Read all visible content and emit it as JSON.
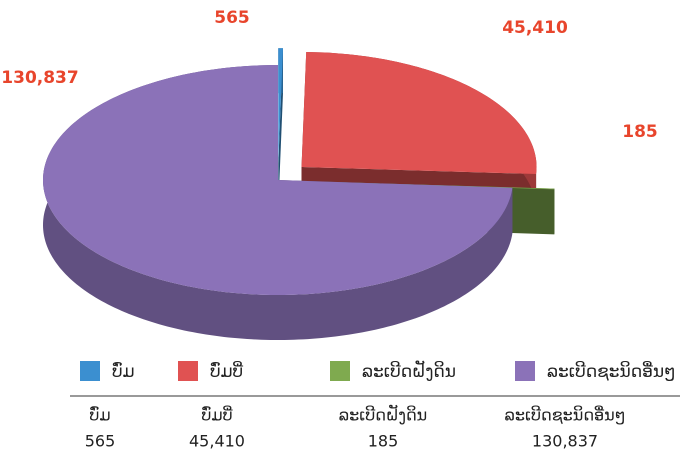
{
  "chart_data": {
    "type": "pie",
    "categories": [
      "ບົ່ມ",
      "ບົ່ມບີ່",
      "ລະເບີດຝັງດິນ",
      "ລະເບີດຊະນິດອື່ນໆ"
    ],
    "values": [
      565,
      45410,
      185,
      130837
    ],
    "value_labels": [
      "565",
      "45,410",
      "185",
      "130,837"
    ],
    "colors": [
      "#3b8fd0",
      "#e05252",
      "#7faa4f",
      "#8b72b8"
    ],
    "legend": "bottom"
  }
}
